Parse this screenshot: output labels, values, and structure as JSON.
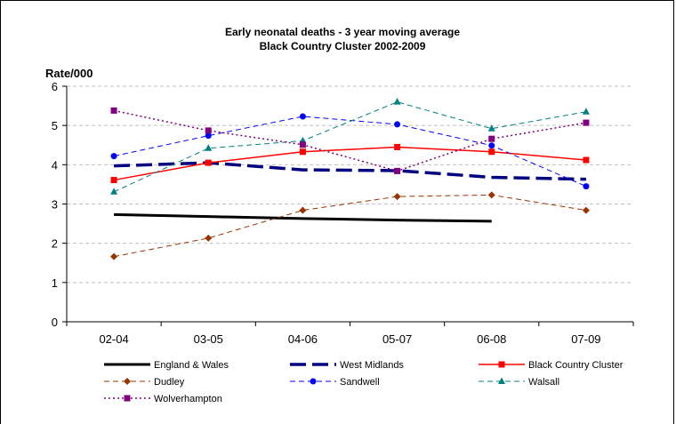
{
  "chart_data": {
    "type": "line",
    "title": "Early neonatal deaths - 3 year moving average",
    "subtitle": "Black Country Cluster 2002-2009",
    "ylabel": "Rate/000",
    "xlabel": "",
    "categories": [
      "02-04",
      "03-05",
      "04-06",
      "05-07",
      "06-08",
      "07-09"
    ],
    "ylim": [
      0,
      6
    ],
    "yticks": [
      "0",
      "1",
      "2",
      "3",
      "4",
      "5",
      "6"
    ],
    "grid": "horizontal dashed",
    "legend_position": "bottom",
    "series": [
      {
        "name": "England & Wales",
        "values": [
          2.73,
          2.68,
          2.63,
          2.59,
          2.56,
          null
        ],
        "color": "#000000",
        "style": "solid",
        "width": 3,
        "marker": "none"
      },
      {
        "name": "West Midlands",
        "values": [
          3.97,
          4.05,
          3.87,
          3.85,
          3.68,
          3.63
        ],
        "color": "#000080",
        "style": "longdash",
        "width": 3.5,
        "marker": "none"
      },
      {
        "name": "Black Country Cluster",
        "values": [
          3.61,
          4.05,
          4.33,
          4.45,
          4.33,
          4.12
        ],
        "color": "#ff0000",
        "style": "solid",
        "width": 1.5,
        "marker": "square"
      },
      {
        "name": "Dudley",
        "values": [
          1.66,
          2.13,
          2.84,
          3.19,
          3.23,
          2.84
        ],
        "color": "#993300",
        "style": "dash",
        "width": 1,
        "marker": "diamond"
      },
      {
        "name": "Sandwell",
        "values": [
          4.22,
          4.74,
          5.23,
          5.03,
          4.49,
          3.45
        ],
        "color": "#0000ff",
        "style": "dash",
        "width": 1,
        "marker": "circle"
      },
      {
        "name": "Walsall",
        "values": [
          3.31,
          4.42,
          4.61,
          5.6,
          4.92,
          5.35
        ],
        "color": "#008080",
        "style": "dash",
        "width": 1,
        "marker": "triangle"
      },
      {
        "name": "Wolverhampton",
        "values": [
          5.38,
          4.87,
          4.51,
          3.84,
          4.66,
          5.07
        ],
        "color": "#800080",
        "style": "dot",
        "width": 1.5,
        "marker": "square"
      }
    ]
  }
}
